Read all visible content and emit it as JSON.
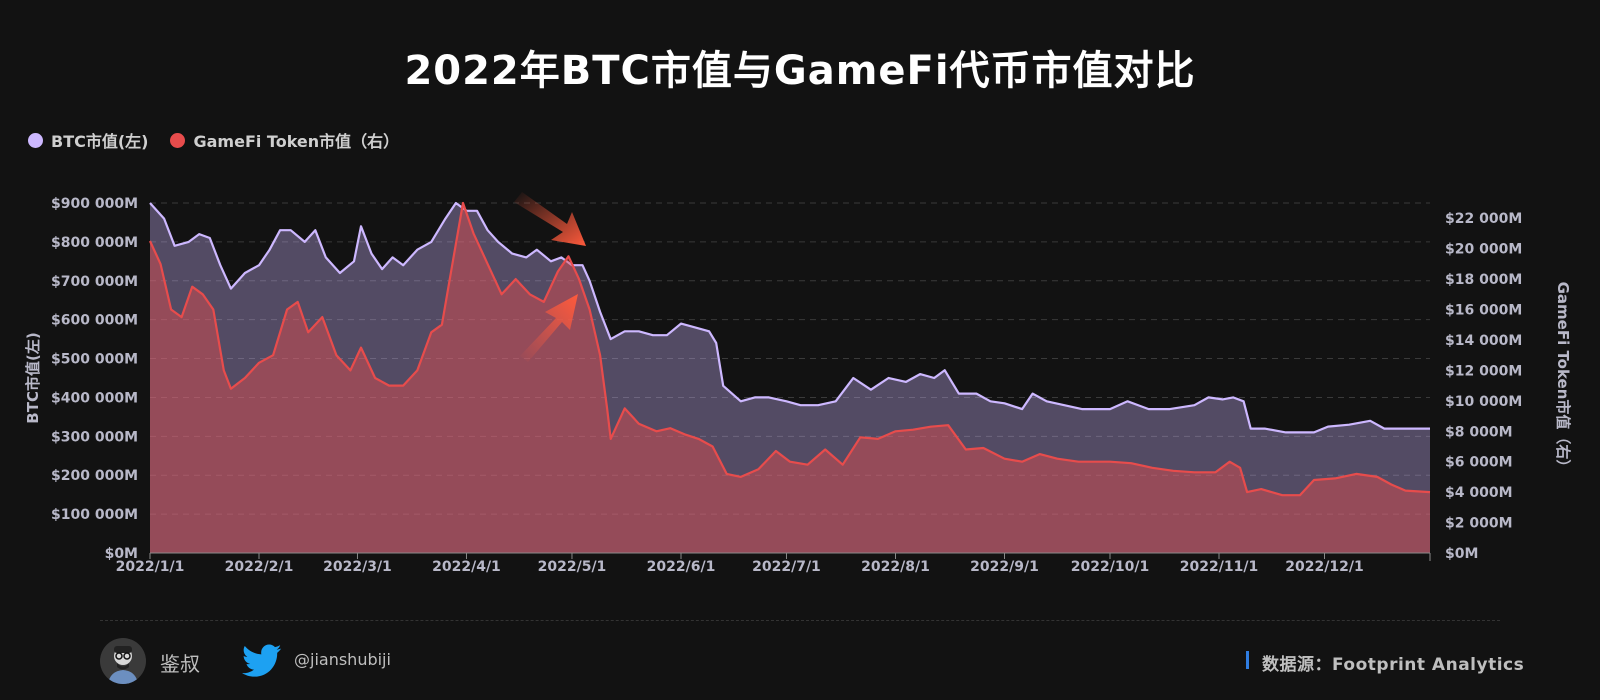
{
  "title": "2022年BTC市值与GameFi代币市值对比",
  "footer": {
    "author": "鉴叔",
    "twitter_handle": "@jianshubiji",
    "source": "数据源：Footprint  Analytics"
  },
  "colors": {
    "btc": "#cdb8ff",
    "gamefi": "#e74c4c",
    "background": "#121212",
    "arrow": "#ff5a3c",
    "twitter": "#1da1f2",
    "source_accent": "#2f7de1"
  },
  "icons": [
    "avatar-icon",
    "twitter-icon",
    "arrow-down-icon",
    "arrow-up-icon"
  ],
  "chart_data": {
    "type": "area",
    "title": "2022年BTC市值与GameFi代币市值对比",
    "legend_position": "top-left",
    "grid": true,
    "x_ticks": [
      "2022/1/1",
      "2022/2/1",
      "2022/3/1",
      "2022/4/1",
      "2022/5/1",
      "2022/6/1",
      "2022/7/1",
      "2022/8/1",
      "2022/9/1",
      "2022/10/1",
      "2022/11/1",
      "2022/12/1"
    ],
    "x_range": [
      "2022/1/1",
      "2022/12/31"
    ],
    "y_left": {
      "label": "BTC市值(左)",
      "ticks": [
        "$0M",
        "$100 000M",
        "$200 000M",
        "$300 000M",
        "$400 000M",
        "$500 000M",
        "$600 000M",
        "$700 000M",
        "$800 000M",
        "$900 000M"
      ],
      "range": [
        0,
        900000
      ]
    },
    "y_right": {
      "label": "GameFi Token市值（右）",
      "ticks": [
        "$0M",
        "$2 000M",
        "$4 000M",
        "$6 000M",
        "$8 000M",
        "$10 000M",
        "$12 000M",
        "$14 000M",
        "$16 000M",
        "$18 000M",
        "$20 000M",
        "$22 000M"
      ],
      "range": [
        0,
        23000
      ]
    },
    "series": [
      {
        "name": "BTC市值(左)",
        "axis": "left",
        "points": [
          [
            "2022/1/1",
            900000
          ],
          [
            "2022/1/5",
            860000
          ],
          [
            "2022/1/8",
            790000
          ],
          [
            "2022/1/12",
            800000
          ],
          [
            "2022/1/15",
            820000
          ],
          [
            "2022/1/18",
            810000
          ],
          [
            "2022/1/21",
            740000
          ],
          [
            "2022/1/24",
            680000
          ],
          [
            "2022/1/28",
            720000
          ],
          [
            "2022/2/1",
            740000
          ],
          [
            "2022/2/4",
            780000
          ],
          [
            "2022/2/7",
            830000
          ],
          [
            "2022/2/10",
            830000
          ],
          [
            "2022/2/14",
            800000
          ],
          [
            "2022/2/17",
            830000
          ],
          [
            "2022/2/20",
            760000
          ],
          [
            "2022/2/24",
            720000
          ],
          [
            "2022/2/28",
            750000
          ],
          [
            "2022/3/2",
            840000
          ],
          [
            "2022/3/5",
            770000
          ],
          [
            "2022/3/8",
            730000
          ],
          [
            "2022/3/11",
            760000
          ],
          [
            "2022/3/14",
            740000
          ],
          [
            "2022/3/18",
            780000
          ],
          [
            "2022/3/22",
            800000
          ],
          [
            "2022/3/26",
            860000
          ],
          [
            "2022/3/29",
            900000
          ],
          [
            "2022/4/1",
            880000
          ],
          [
            "2022/4/4",
            880000
          ],
          [
            "2022/4/7",
            830000
          ],
          [
            "2022/4/10",
            800000
          ],
          [
            "2022/4/14",
            770000
          ],
          [
            "2022/4/18",
            760000
          ],
          [
            "2022/4/21",
            780000
          ],
          [
            "2022/4/25",
            750000
          ],
          [
            "2022/4/28",
            760000
          ],
          [
            "2022/5/1",
            740000
          ],
          [
            "2022/5/4",
            740000
          ],
          [
            "2022/5/6",
            700000
          ],
          [
            "2022/5/9",
            620000
          ],
          [
            "2022/5/12",
            550000
          ],
          [
            "2022/5/16",
            570000
          ],
          [
            "2022/5/20",
            570000
          ],
          [
            "2022/5/24",
            560000
          ],
          [
            "2022/5/28",
            560000
          ],
          [
            "2022/6/1",
            590000
          ],
          [
            "2022/6/5",
            580000
          ],
          [
            "2022/6/9",
            570000
          ],
          [
            "2022/6/11",
            540000
          ],
          [
            "2022/6/13",
            430000
          ],
          [
            "2022/6/18",
            390000
          ],
          [
            "2022/6/22",
            400000
          ],
          [
            "2022/6/26",
            400000
          ],
          [
            "2022/7/1",
            390000
          ],
          [
            "2022/7/5",
            380000
          ],
          [
            "2022/7/10",
            380000
          ],
          [
            "2022/7/15",
            390000
          ],
          [
            "2022/7/20",
            450000
          ],
          [
            "2022/7/25",
            420000
          ],
          [
            "2022/7/30",
            450000
          ],
          [
            "2022/8/4",
            440000
          ],
          [
            "2022/8/8",
            460000
          ],
          [
            "2022/8/12",
            450000
          ],
          [
            "2022/8/15",
            470000
          ],
          [
            "2022/8/19",
            410000
          ],
          [
            "2022/8/24",
            410000
          ],
          [
            "2022/8/28",
            390000
          ],
          [
            "2022/9/1",
            385000
          ],
          [
            "2022/9/6",
            370000
          ],
          [
            "2022/9/9",
            410000
          ],
          [
            "2022/9/13",
            390000
          ],
          [
            "2022/9/18",
            380000
          ],
          [
            "2022/9/23",
            370000
          ],
          [
            "2022/10/1",
            370000
          ],
          [
            "2022/10/6",
            390000
          ],
          [
            "2022/10/12",
            370000
          ],
          [
            "2022/10/18",
            370000
          ],
          [
            "2022/10/25",
            380000
          ],
          [
            "2022/10/29",
            400000
          ],
          [
            "2022/11/2",
            395000
          ],
          [
            "2022/11/5",
            400000
          ],
          [
            "2022/11/8",
            390000
          ],
          [
            "2022/11/10",
            320000
          ],
          [
            "2022/11/14",
            320000
          ],
          [
            "2022/11/20",
            310000
          ],
          [
            "2022/11/28",
            310000
          ],
          [
            "2022/12/2",
            325000
          ],
          [
            "2022/12/8",
            330000
          ],
          [
            "2022/12/14",
            340000
          ],
          [
            "2022/12/18",
            320000
          ],
          [
            "2022/12/23",
            320000
          ],
          [
            "2022/12/31",
            320000
          ]
        ]
      },
      {
        "name": "GameFi Token市值（右）",
        "axis": "right",
        "points": [
          [
            "2022/1/1",
            20500
          ],
          [
            "2022/1/4",
            19000
          ],
          [
            "2022/1/7",
            16000
          ],
          [
            "2022/1/10",
            15500
          ],
          [
            "2022/1/13",
            17500
          ],
          [
            "2022/1/16",
            17000
          ],
          [
            "2022/1/19",
            16000
          ],
          [
            "2022/1/22",
            12000
          ],
          [
            "2022/1/24",
            10800
          ],
          [
            "2022/1/28",
            11500
          ],
          [
            "2022/2/1",
            12500
          ],
          [
            "2022/2/5",
            13000
          ],
          [
            "2022/2/9",
            16000
          ],
          [
            "2022/2/12",
            16500
          ],
          [
            "2022/2/15",
            14500
          ],
          [
            "2022/2/19",
            15500
          ],
          [
            "2022/2/23",
            13000
          ],
          [
            "2022/2/27",
            12000
          ],
          [
            "2022/3/2",
            13500
          ],
          [
            "2022/3/6",
            11500
          ],
          [
            "2022/3/10",
            11000
          ],
          [
            "2022/3/14",
            11000
          ],
          [
            "2022/3/18",
            12000
          ],
          [
            "2022/3/22",
            14500
          ],
          [
            "2022/3/25",
            15000
          ],
          [
            "2022/3/28",
            19000
          ],
          [
            "2022/3/31",
            23000
          ],
          [
            "2022/4/3",
            21000
          ],
          [
            "2022/4/7",
            19000
          ],
          [
            "2022/4/11",
            17000
          ],
          [
            "2022/4/15",
            18000
          ],
          [
            "2022/4/19",
            17000
          ],
          [
            "2022/4/23",
            16500
          ],
          [
            "2022/4/27",
            18500
          ],
          [
            "2022/4/30",
            19500
          ],
          [
            "2022/5/3",
            18000
          ],
          [
            "2022/5/6",
            16000
          ],
          [
            "2022/5/9",
            13000
          ],
          [
            "2022/5/11",
            9500
          ],
          [
            "2022/5/12",
            7500
          ],
          [
            "2022/5/16",
            9500
          ],
          [
            "2022/5/20",
            8500
          ],
          [
            "2022/5/25",
            8000
          ],
          [
            "2022/5/29",
            8200
          ],
          [
            "2022/6/2",
            7800
          ],
          [
            "2022/6/6",
            7500
          ],
          [
            "2022/6/10",
            7000
          ],
          [
            "2022/6/14",
            5200
          ],
          [
            "2022/6/18",
            5000
          ],
          [
            "2022/6/23",
            5500
          ],
          [
            "2022/6/28",
            6700
          ],
          [
            "2022/7/2",
            6000
          ],
          [
            "2022/7/7",
            5800
          ],
          [
            "2022/7/12",
            6800
          ],
          [
            "2022/7/17",
            5800
          ],
          [
            "2022/7/22",
            7600
          ],
          [
            "2022/7/27",
            7500
          ],
          [
            "2022/8/1",
            8000
          ],
          [
            "2022/8/6",
            8100
          ],
          [
            "2022/8/11",
            8300
          ],
          [
            "2022/8/16",
            8400
          ],
          [
            "2022/8/21",
            6800
          ],
          [
            "2022/8/26",
            6900
          ],
          [
            "2022/9/1",
            6200
          ],
          [
            "2022/9/6",
            6000
          ],
          [
            "2022/9/11",
            6500
          ],
          [
            "2022/9/16",
            6200
          ],
          [
            "2022/9/22",
            6000
          ],
          [
            "2022/10/1",
            6000
          ],
          [
            "2022/10/7",
            5900
          ],
          [
            "2022/10/13",
            5600
          ],
          [
            "2022/10/19",
            5400
          ],
          [
            "2022/10/25",
            5300
          ],
          [
            "2022/10/31",
            5300
          ],
          [
            "2022/11/4",
            6000
          ],
          [
            "2022/11/7",
            5600
          ],
          [
            "2022/11/9",
            4000
          ],
          [
            "2022/11/13",
            4200
          ],
          [
            "2022/11/19",
            3800
          ],
          [
            "2022/11/24",
            3800
          ],
          [
            "2022/11/28",
            4800
          ],
          [
            "2022/12/4",
            4900
          ],
          [
            "2022/12/10",
            5200
          ],
          [
            "2022/12/16",
            5000
          ],
          [
            "2022/12/20",
            4500
          ],
          [
            "2022/12/24",
            4100
          ],
          [
            "2022/12/31",
            4000
          ]
        ]
      }
    ]
  }
}
